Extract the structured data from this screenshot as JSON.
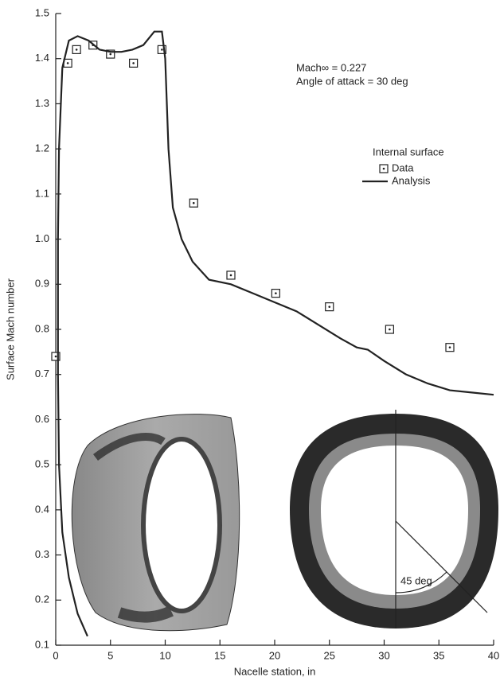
{
  "chart_data": {
    "type": "scatter",
    "xlabel": "Nacelle station, in",
    "ylabel": "Surface Mach number",
    "annotations": [
      "Mach∞ = 0.227",
      "Angle of attack = 30 deg",
      "45 deg"
    ],
    "legend_title": "Internal surface",
    "legend_position": "right",
    "xlim": [
      0,
      40
    ],
    "xticks": [
      0,
      5,
      10,
      15,
      20,
      25,
      30,
      35,
      40
    ],
    "ylim": [
      0.1,
      1.5
    ],
    "yticks": [
      0.1,
      0.2,
      0.3,
      0.4,
      0.5,
      0.6,
      0.7,
      0.8,
      0.9,
      {
        "value": 1,
        "label": "1.0"
      },
      1.1,
      1.2,
      1.3,
      1.4,
      1.5
    ],
    "series": [
      {
        "name": "Data",
        "type": "scatter",
        "color": "#222222",
        "x": [
          0,
          1.1,
          1.9,
          3.4,
          5,
          7.1,
          9.7,
          12.6,
          16,
          20.1,
          25,
          30.5,
          36
        ],
        "values": [
          0.74,
          1.39,
          1.42,
          1.43,
          1.41,
          1.39,
          1.42,
          1.08,
          0.92,
          0.88,
          0.85,
          0.8,
          0.76
        ]
      },
      {
        "name": "Analysis",
        "type": "line",
        "color": "#222222",
        "x": [
          2.9,
          2.0,
          1.2,
          0.6,
          0.3,
          0.2,
          0.2,
          0.3,
          0.6,
          1.2,
          2,
          3,
          4,
          5,
          6,
          7,
          8,
          9,
          9.7,
          10,
          10.3,
          10.7,
          11.5,
          12.5,
          14,
          16,
          18,
          20,
          22,
          24,
          26,
          27.5,
          28.5,
          30,
          32,
          34,
          36,
          38,
          40
        ],
        "values": [
          0.12,
          0.17,
          0.25,
          0.35,
          0.5,
          0.7,
          1.0,
          1.2,
          1.38,
          1.44,
          1.45,
          1.44,
          1.42,
          1.415,
          1.415,
          1.42,
          1.43,
          1.46,
          1.46,
          1.4,
          1.2,
          1.07,
          1.0,
          0.95,
          0.91,
          0.9,
          0.88,
          0.86,
          0.84,
          0.81,
          0.78,
          0.76,
          0.755,
          0.73,
          0.7,
          0.68,
          0.665,
          0.66,
          0.655
        ]
      }
    ]
  }
}
